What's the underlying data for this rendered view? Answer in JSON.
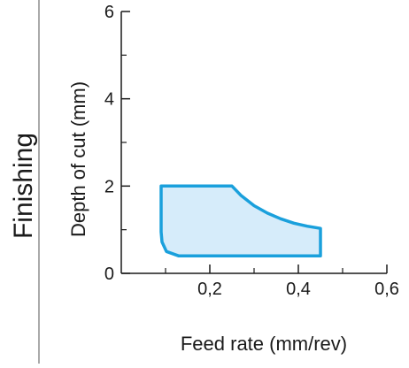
{
  "section_label": "Finishing",
  "chart_data": {
    "type": "area",
    "title": "",
    "xlabel": "Feed rate (mm/rev)",
    "ylabel": "Depth of cut (mm)",
    "xlim": [
      0,
      0.6
    ],
    "ylim": [
      0,
      6
    ],
    "x_ticks": [
      {
        "value": 0.2,
        "label": "0,2"
      },
      {
        "value": 0.4,
        "label": "0,4"
      },
      {
        "value": 0.6,
        "label": "0,6"
      }
    ],
    "x_minor_ticks": [
      0.1,
      0.3,
      0.5
    ],
    "y_ticks": [
      {
        "value": 0,
        "label": "0"
      },
      {
        "value": 2,
        "label": "2"
      },
      {
        "value": 4,
        "label": "4"
      },
      {
        "value": 6,
        "label": "6"
      }
    ],
    "y_minor_ticks": [
      1,
      3,
      5
    ],
    "grid": false,
    "legend": "none",
    "region": {
      "name": "",
      "points": [
        {
          "x": 0.09,
          "y": 2.0
        },
        {
          "x": 0.25,
          "y": 2.0
        },
        {
          "x": 0.27,
          "y": 1.79
        },
        {
          "x": 0.3,
          "y": 1.55
        },
        {
          "x": 0.33,
          "y": 1.38
        },
        {
          "x": 0.36,
          "y": 1.25
        },
        {
          "x": 0.39,
          "y": 1.15
        },
        {
          "x": 0.42,
          "y": 1.08
        },
        {
          "x": 0.45,
          "y": 1.03
        },
        {
          "x": 0.45,
          "y": 0.4
        },
        {
          "x": 0.13,
          "y": 0.4
        },
        {
          "x": 0.102,
          "y": 0.5
        },
        {
          "x": 0.092,
          "y": 0.72
        },
        {
          "x": 0.09,
          "y": 0.95
        },
        {
          "x": 0.09,
          "y": 2.0
        }
      ],
      "stroke_color": "#1aa0dc",
      "fill_color": "#d6ecfa"
    },
    "colors": {
      "axis": "#1a1a1a",
      "divider": "#555555"
    }
  }
}
